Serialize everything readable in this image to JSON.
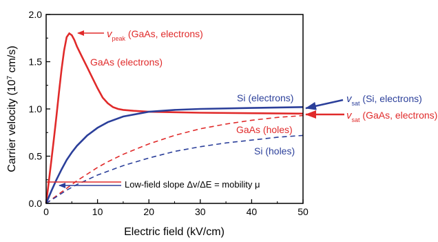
{
  "chart_data": {
    "type": "line",
    "xlabel": "Electric field (kV/cm)",
    "ylabel_main": "Carrier velocity (10",
    "ylabel_exp": "7",
    "ylabel_unit": " cm/s)",
    "xlim": [
      0,
      50
    ],
    "ylim": [
      0,
      2.0
    ],
    "x_ticks": [
      "0",
      "10",
      "20",
      "30",
      "40",
      "50"
    ],
    "y_ticks": [
      "0.0",
      "0.5",
      "1.0",
      "1.5",
      "2.0"
    ],
    "grid": false,
    "colors": {
      "red": "#e02a2a",
      "blue": "#2b3f9a"
    },
    "series": [
      {
        "key": "gaas_e",
        "color": "red",
        "dash": false,
        "x": [
          0,
          0.5,
          1,
          1.5,
          2,
          2.5,
          3,
          3.5,
          4,
          4.5,
          5,
          5.5,
          6,
          7,
          8,
          9,
          10,
          11,
          12,
          13,
          14,
          15,
          17,
          20,
          25,
          30,
          40,
          50
        ],
        "y": [
          0,
          0.22,
          0.45,
          0.68,
          0.92,
          1.18,
          1.42,
          1.62,
          1.76,
          1.8,
          1.78,
          1.73,
          1.66,
          1.55,
          1.44,
          1.33,
          1.22,
          1.12,
          1.06,
          1.02,
          1.0,
          0.99,
          0.98,
          0.97,
          0.965,
          0.96,
          0.955,
          0.95
        ]
      },
      {
        "key": "si_e",
        "color": "blue",
        "dash": false,
        "x": [
          0,
          1,
          2,
          3,
          4,
          5,
          6,
          8,
          10,
          12,
          15,
          20,
          25,
          30,
          40,
          50
        ],
        "y": [
          0,
          0.13,
          0.25,
          0.36,
          0.46,
          0.54,
          0.61,
          0.72,
          0.8,
          0.86,
          0.92,
          0.97,
          0.99,
          1.0,
          1.01,
          1.02
        ]
      },
      {
        "key": "gaas_h",
        "color": "red",
        "dash": true,
        "x": [
          0,
          2,
          4,
          6,
          8,
          10,
          12,
          15,
          20,
          25,
          30,
          35,
          40,
          45,
          50
        ],
        "y": [
          0,
          0.08,
          0.16,
          0.24,
          0.31,
          0.38,
          0.44,
          0.52,
          0.63,
          0.72,
          0.79,
          0.84,
          0.88,
          0.91,
          0.93
        ]
      },
      {
        "key": "si_h",
        "color": "blue",
        "dash": true,
        "x": [
          0,
          2,
          4,
          6,
          8,
          10,
          12,
          15,
          20,
          25,
          30,
          35,
          40,
          45,
          50
        ],
        "y": [
          0,
          0.07,
          0.14,
          0.2,
          0.25,
          0.3,
          0.34,
          0.4,
          0.48,
          0.55,
          0.6,
          0.64,
          0.67,
          0.7,
          0.72
        ]
      }
    ],
    "annotations": {
      "gaas_e_label": "GaAs (electrons)",
      "si_e_label": "Si (electrons)",
      "gaas_h_label": "GaAs (holes)",
      "si_h_label": "Si (holes)",
      "vpeak_sym": "v",
      "vpeak_sub": "peak",
      "vpeak_text": " (GaAs, electrons)",
      "vsat_si_sym": "v",
      "vsat_si_sub": "sat",
      "vsat_si_text": " (Si, electrons)",
      "vsat_gaas_sym": "v",
      "vsat_gaas_sub": "sat",
      "vsat_gaas_text": " (GaAs, electrons)",
      "lowfield_text": "Low-field slope Δv/ΔE = mobility μ"
    }
  }
}
